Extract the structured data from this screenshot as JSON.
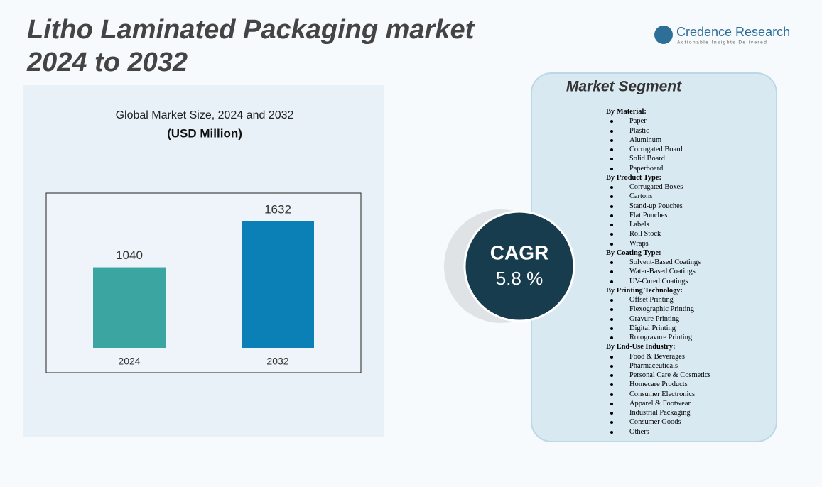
{
  "header": {
    "title_line1": "Litho Laminated Packaging market",
    "title_line2": "2024 to 2032"
  },
  "brand": {
    "name": "Credence Research",
    "tagline": "Actionable Insights Delivered"
  },
  "chart_data": {
    "type": "bar",
    "title": "Global Market Size, 2024 and 2032",
    "subtitle": "(USD Million)",
    "categories": [
      "2024",
      "2032"
    ],
    "series": [
      {
        "values": [
          1040,
          1632
        ],
        "colors": [
          "#3aa5a1",
          "#0a80b6"
        ]
      }
    ]
  },
  "cagr": {
    "label": "CAGR",
    "value": "5.8 %"
  },
  "segments": {
    "title": "Market Segment",
    "groups": [
      {
        "heading": "By Material:",
        "items": [
          "Paper",
          "Plastic",
          "Aluminum",
          "Corrugated Board",
          "Solid Board",
          "Paperboard"
        ]
      },
      {
        "heading": "By Product Type:",
        "items": [
          "Corrugated Boxes",
          "Cartons",
          "Stand-up Pouches",
          "Flat Pouches",
          "Labels",
          "Roll Stock",
          "Wraps"
        ]
      },
      {
        "heading": "By Coating Type:",
        "items": [
          "Solvent-Based Coatings",
          "Water-Based Coatings",
          "UV-Cured Coatings"
        ]
      },
      {
        "heading": "By Printing Technology:",
        "items": [
          "Offset Printing",
          "Flexographic Printing",
          "Gravure Printing",
          "Digital Printing",
          "Rotogravure Printing"
        ]
      },
      {
        "heading": "By End-Use Industry:",
        "items": [
          "Food & Beverages",
          "Pharmaceuticals",
          "Personal Care & Cosmetics",
          "Homecare Products",
          "Consumer Electronics",
          "Apparel & Footwear",
          "Industrial Packaging",
          "Consumer Goods",
          "Others"
        ]
      }
    ]
  }
}
